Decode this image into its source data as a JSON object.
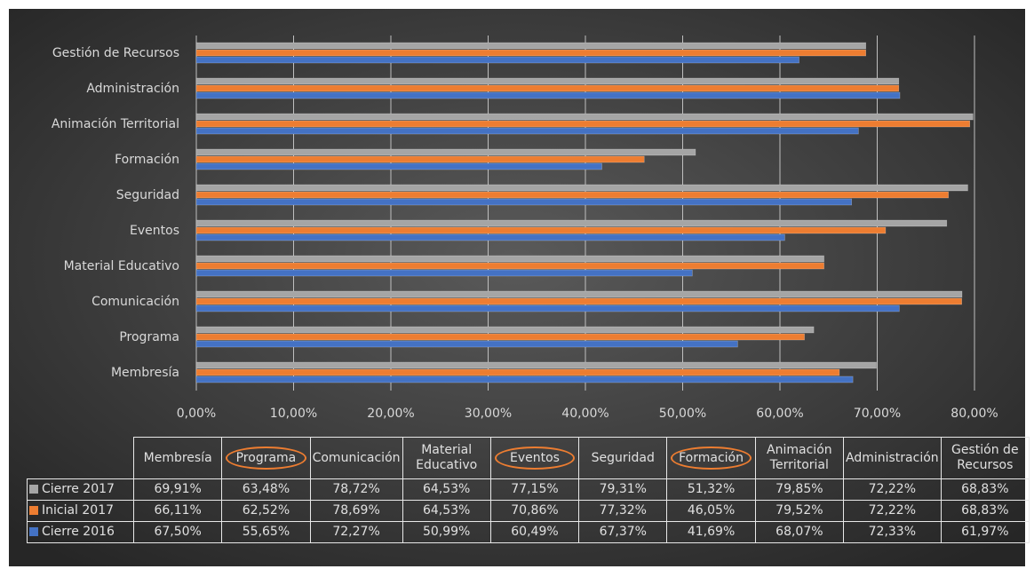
{
  "chart_data": {
    "type": "bar",
    "orientation": "horizontal",
    "categories": [
      "Membresía",
      "Programa",
      "Comunicación",
      "Material Educativo",
      "Eventos",
      "Seguridad",
      "Formación",
      "Animación Territorial",
      "Administración",
      "Gestión de Recursos"
    ],
    "series": [
      {
        "name": "Cierre 2017",
        "color": "#a5a5a5",
        "values": [
          69.91,
          63.48,
          78.72,
          64.53,
          77.15,
          79.31,
          51.32,
          79.85,
          72.22,
          68.83
        ],
        "value_labels": [
          "69,91%",
          "63,48%",
          "78,72%",
          "64,53%",
          "77,15%",
          "79,31%",
          "51,32%",
          "79,85%",
          "72,22%",
          "68,83%"
        ]
      },
      {
        "name": "Inicial 2017",
        "color": "#ed7d31",
        "values": [
          66.11,
          62.52,
          78.69,
          64.53,
          70.86,
          77.32,
          46.05,
          79.52,
          72.22,
          68.83
        ],
        "value_labels": [
          "66,11%",
          "62,52%",
          "78,69%",
          "64,53%",
          "70,86%",
          "77,32%",
          "46,05%",
          "79,52%",
          "72,22%",
          "68,83%"
        ]
      },
      {
        "name": "Cierre 2016",
        "color": "#4472c4",
        "values": [
          67.5,
          55.65,
          72.27,
          50.99,
          60.49,
          67.37,
          41.69,
          68.07,
          72.33,
          61.97
        ],
        "value_labels": [
          "67,50%",
          "55,65%",
          "72,27%",
          "50,99%",
          "60,49%",
          "67,37%",
          "41,69%",
          "68,07%",
          "72,33%",
          "61,97%"
        ]
      }
    ],
    "xlim": [
      0,
      80
    ],
    "xticks": [
      {
        "value": 0,
        "label": "0,00%"
      },
      {
        "value": 10,
        "label": "10,00%"
      },
      {
        "value": 20,
        "label": "20,00%"
      },
      {
        "value": 30,
        "label": "30,00%"
      },
      {
        "value": 40,
        "label": "40,00%"
      },
      {
        "value": 50,
        "label": "50,00%"
      },
      {
        "value": 60,
        "label": "60,00%"
      },
      {
        "value": 70,
        "label": "70,00%"
      },
      {
        "value": 80,
        "label": "80,00%"
      }
    ],
    "grid": true,
    "data_table": true
  }
}
